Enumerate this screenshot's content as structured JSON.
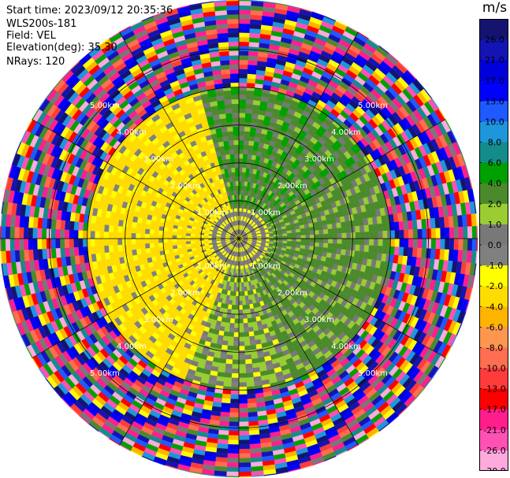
{
  "info": {
    "start_time": "Start time: 2023/09/12 20:35:36",
    "instrument": "WLS200s-181",
    "field": "Field: VEL",
    "elevation": "Elevation(deg): 35.30",
    "nrays": "NRays: 120"
  },
  "colorbar": {
    "unit": "m/s",
    "boundaries": [
      -30,
      -26,
      -21,
      -17,
      -13,
      -10,
      -8,
      -6,
      -4,
      -2,
      -1,
      0,
      1,
      2,
      4,
      6,
      8,
      10,
      13,
      17,
      21,
      26,
      30
    ],
    "tick_labels": [
      "26.0",
      "21.0",
      "17.0",
      "13.0",
      "10.0",
      "8.0",
      "6.0",
      "4.0",
      "2.0",
      "1.0",
      "0.0",
      "-1.0",
      "-2.0",
      "-4.0",
      "-6.0",
      "-8.0",
      "-10.0",
      "-13.0",
      "-17.0",
      "-21.0",
      "-26.0",
      "-30.0"
    ],
    "colors": [
      "#141470",
      "#1414b4",
      "#0000dc",
      "#0000ff",
      "#1e5aff",
      "#1e96dc",
      "#148c8c",
      "#00a000",
      "#4b8a2c",
      "#9acd32",
      "#787878",
      "#808080",
      "#ffff00",
      "#ffdc00",
      "#ffb400",
      "#ff9650",
      "#ff6e50",
      "#ff3c3c",
      "#ff0000",
      "#ff1e8c",
      "#ff50b4",
      "#ffaadc"
    ]
  },
  "chart_data": {
    "type": "ppi",
    "field": "VEL",
    "nrays": 120,
    "range_rings_km": [
      {
        "value": 1.0,
        "label": "1.00km"
      },
      {
        "value": 2.0,
        "label": "2.00km"
      },
      {
        "value": 3.0,
        "label": "3.00km"
      },
      {
        "value": 4.0,
        "label": "4.00km"
      },
      {
        "value": 5.0,
        "label": "5.00km"
      }
    ],
    "max_range_km": 6.3,
    "azimuth_lines_deg": [
      0,
      30,
      60,
      90,
      120,
      150,
      180,
      210,
      240,
      270,
      300,
      330
    ],
    "sectors": [
      {
        "az_from": 345,
        "az_to": 60,
        "range_from_km": 0.8,
        "range_to_km": 4.0,
        "values": [
          2,
          4,
          0,
          2,
          2,
          1,
          0,
          2,
          4
        ]
      },
      {
        "az_from": 60,
        "az_to": 160,
        "range_from_km": 0.8,
        "range_to_km": 4.0,
        "values": [
          2,
          1,
          2,
          0,
          2,
          3,
          1,
          2,
          0
        ]
      },
      {
        "az_from": 160,
        "az_to": 200,
        "range_from_km": 0.8,
        "range_to_km": 4.0,
        "values": [
          1,
          0,
          2,
          1,
          -0.5,
          2,
          0,
          1,
          -1.5
        ]
      },
      {
        "az_from": 200,
        "az_to": 345,
        "range_from_km": 0.8,
        "range_to_km": 4.0,
        "values": [
          -3,
          -1.5,
          -3,
          -3,
          -0.5,
          -3,
          -1.5,
          -3,
          -3
        ]
      },
      {
        "az_from": 0,
        "az_to": 360,
        "range_from_km": 0.0,
        "range_to_km": 0.8,
        "values": [
          -1.5,
          0,
          -0.5,
          0,
          -1.5,
          -0.5
        ]
      },
      {
        "az_from": 0,
        "az_to": 360,
        "range_from_km": 4.0,
        "range_to_km": 6.3,
        "values": [
          -25,
          22,
          2,
          -15,
          18,
          0,
          -28,
          9,
          -11,
          24,
          -5,
          14,
          -20,
          5,
          27,
          -9,
          11,
          -2,
          -18,
          7
        ]
      }
    ]
  }
}
